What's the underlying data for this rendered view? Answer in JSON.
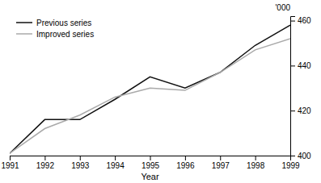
{
  "chart_data": {
    "type": "line",
    "x": [
      1991,
      1992,
      1993,
      1994,
      1995,
      1996,
      1997,
      1998,
      1999
    ],
    "series": [
      {
        "name": "Previous series",
        "color": "#111111",
        "values": [
          401,
          416,
          416,
          425,
          435,
          430,
          437,
          449,
          458
        ]
      },
      {
        "name": "Improved series",
        "color": "#aaaaaa",
        "values": [
          401,
          412,
          418,
          426,
          430,
          429,
          437,
          447,
          452
        ]
      }
    ],
    "xlabel": "Year",
    "ylabel": "'000",
    "xlim": [
      1991,
      1999
    ],
    "xticks": [
      1991,
      1992,
      1993,
      1994,
      1995,
      1996,
      1997,
      1998,
      1999
    ],
    "ylim": [
      400,
      462
    ],
    "yticks": [
      400,
      420,
      440,
      460
    ],
    "grid": false,
    "legend": "upper left"
  }
}
